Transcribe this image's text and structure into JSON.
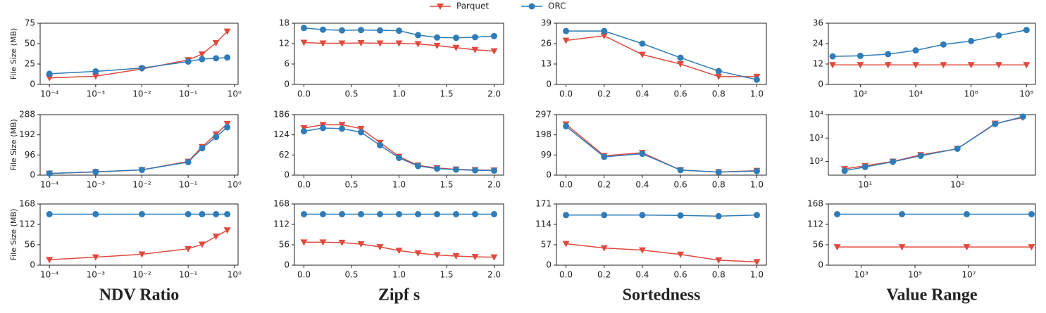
{
  "chart_data": [
    {
      "type": "line",
      "ylabel": "File Size (MB)",
      "xscale": "log",
      "x": [
        0.0001,
        0.001,
        0.01,
        0.1,
        0.2,
        0.4,
        0.7
      ],
      "xlim": [
        6.3e-05,
        1.2
      ],
      "xticks": [
        {
          "value": 0.0001,
          "label": "10⁻⁴"
        },
        {
          "value": 0.001,
          "label": "10⁻³"
        },
        {
          "value": 0.01,
          "label": "10⁻²"
        },
        {
          "value": 0.1,
          "label": "10⁻¹"
        },
        {
          "value": 1,
          "label": "10⁰"
        }
      ],
      "ylim": [
        0,
        75
      ],
      "yticks": [
        0,
        25,
        50,
        75
      ],
      "series": [
        {
          "name": "Parquet",
          "color": "#e0493e",
          "marker": "v",
          "values": [
            8,
            10,
            19,
            30,
            37,
            51,
            65
          ]
        },
        {
          "name": "ORC",
          "color": "#2f7cb8",
          "marker": "o",
          "values": [
            13,
            16,
            20,
            28,
            31,
            32,
            33
          ]
        }
      ]
    },
    {
      "type": "line",
      "x": [
        0,
        0.2,
        0.4,
        0.6,
        0.8,
        1.0,
        1.2,
        1.4,
        1.6,
        1.8,
        2.0
      ],
      "xlim": [
        -0.1,
        2.1
      ],
      "xticks": [
        {
          "value": 0,
          "label": "0.0"
        },
        {
          "value": 0.5,
          "label": "0.5"
        },
        {
          "value": 1,
          "label": "1.0"
        },
        {
          "value": 1.5,
          "label": "1.5"
        },
        {
          "value": 2,
          "label": "2.0"
        }
      ],
      "ylim": [
        0,
        18
      ],
      "yticks": [
        0,
        6,
        12,
        18
      ],
      "series": [
        {
          "name": "Parquet",
          "color": "#e0493e",
          "marker": "v",
          "values": [
            12.3,
            12.1,
            12.1,
            12.2,
            12.1,
            12.1,
            11.9,
            11.4,
            10.8,
            10.2,
            9.8
          ]
        },
        {
          "name": "ORC",
          "color": "#2f7cb8",
          "marker": "o",
          "values": [
            16.6,
            16.1,
            15.9,
            16.0,
            15.9,
            15.8,
            14.5,
            13.8,
            13.7,
            13.9,
            14.2
          ]
        }
      ]
    },
    {
      "type": "line",
      "x": [
        0,
        0.2,
        0.4,
        0.6,
        0.8,
        1.0
      ],
      "xlim": [
        -0.05,
        1.05
      ],
      "xticks": [
        {
          "value": 0,
          "label": "0.0"
        },
        {
          "value": 0.2,
          "label": "0.2"
        },
        {
          "value": 0.4,
          "label": "0.4"
        },
        {
          "value": 0.6,
          "label": "0.6"
        },
        {
          "value": 0.8,
          "label": "0.8"
        },
        {
          "value": 1,
          "label": "1.0"
        }
      ],
      "ylim": [
        0,
        39
      ],
      "yticks": [
        0,
        13,
        26,
        39
      ],
      "series": [
        {
          "name": "Parquet",
          "color": "#e0493e",
          "marker": "v",
          "values": [
            28,
            31,
            19,
            13,
            5,
            5
          ]
        },
        {
          "name": "ORC",
          "color": "#2f7cb8",
          "marker": "o",
          "values": [
            34,
            34,
            26,
            17,
            8.5,
            3
          ]
        }
      ]
    },
    {
      "type": "line",
      "xscale": "log",
      "x": [
        10,
        100,
        1000,
        10000,
        100000,
        1000000,
        10000000,
        100000000
      ],
      "xlim": [
        7,
        210000000
      ],
      "xticks": [
        {
          "value": 100,
          "label": "10²"
        },
        {
          "value": 10000,
          "label": "10⁴"
        },
        {
          "value": 1000000,
          "label": "10⁶"
        },
        {
          "value": 100000000,
          "label": "10⁸"
        }
      ],
      "ylim": [
        0,
        36
      ],
      "yticks": [
        0,
        12,
        24,
        36
      ],
      "series": [
        {
          "name": "Parquet",
          "color": "#e0493e",
          "marker": "v",
          "values": [
            11.5,
            11.5,
            11.5,
            11.5,
            11.5,
            11.5,
            11.5,
            11.5
          ]
        },
        {
          "name": "ORC",
          "color": "#2f7cb8",
          "marker": "o",
          "values": [
            16.5,
            16.8,
            17.8,
            20,
            23.5,
            25.5,
            28.8,
            32
          ]
        }
      ]
    },
    {
      "type": "line",
      "ylabel": "File Size (MB)",
      "xscale": "log",
      "x": [
        0.0001,
        0.001,
        0.01,
        0.1,
        0.2,
        0.4,
        0.7
      ],
      "xlim": [
        6.3e-05,
        1.2
      ],
      "xticks": [
        {
          "value": 0.0001,
          "label": "10⁻⁴"
        },
        {
          "value": 0.001,
          "label": "10⁻³"
        },
        {
          "value": 0.01,
          "label": "10⁻²"
        },
        {
          "value": 0.1,
          "label": "10⁻¹"
        },
        {
          "value": 1,
          "label": "10⁰"
        }
      ],
      "ylim": [
        0,
        288
      ],
      "yticks": [
        0,
        96,
        192,
        288
      ],
      "series": [
        {
          "name": "Parquet",
          "color": "#e0493e",
          "marker": "v",
          "values": [
            8,
            15,
            25,
            65,
            135,
            195,
            245
          ]
        },
        {
          "name": "ORC",
          "color": "#2f7cb8",
          "marker": "o",
          "values": [
            8,
            16,
            25,
            62,
            128,
            182,
            228
          ]
        }
      ]
    },
    {
      "type": "line",
      "x": [
        0,
        0.2,
        0.4,
        0.6,
        0.8,
        1.0,
        1.2,
        1.4,
        1.6,
        1.8,
        2.0
      ],
      "xlim": [
        -0.1,
        2.1
      ],
      "xticks": [
        {
          "value": 0,
          "label": "0.0"
        },
        {
          "value": 0.5,
          "label": "0.5"
        },
        {
          "value": 1,
          "label": "1.0"
        },
        {
          "value": 1.5,
          "label": "1.5"
        },
        {
          "value": 2,
          "label": "2.0"
        }
      ],
      "ylim": [
        0,
        186
      ],
      "yticks": [
        0,
        62,
        124,
        186
      ],
      "series": [
        {
          "name": "Parquet",
          "color": "#e0493e",
          "marker": "v",
          "values": [
            145,
            155,
            155,
            143,
            100,
            57,
            30,
            22,
            18,
            16,
            15
          ]
        },
        {
          "name": "ORC",
          "color": "#2f7cb8",
          "marker": "o",
          "values": [
            135,
            145,
            143,
            132,
            92,
            53,
            28,
            20,
            17,
            15,
            14
          ]
        }
      ]
    },
    {
      "type": "line",
      "x": [
        0,
        0.2,
        0.4,
        0.6,
        0.8,
        1.0
      ],
      "xlim": [
        -0.05,
        1.05
      ],
      "xticks": [
        {
          "value": 0,
          "label": "0.0"
        },
        {
          "value": 0.2,
          "label": "0.2"
        },
        {
          "value": 0.4,
          "label": "0.4"
        },
        {
          "value": 0.6,
          "label": "0.6"
        },
        {
          "value": 0.8,
          "label": "0.8"
        },
        {
          "value": 1,
          "label": "1.0"
        }
      ],
      "ylim": [
        0,
        297
      ],
      "yticks": [
        0,
        99,
        198,
        297
      ],
      "series": [
        {
          "name": "Parquet",
          "color": "#e0493e",
          "marker": "v",
          "values": [
            250,
            95,
            110,
            25,
            15,
            22
          ]
        },
        {
          "name": "ORC",
          "color": "#2f7cb8",
          "marker": "o",
          "values": [
            240,
            90,
            105,
            25,
            15,
            20
          ]
        }
      ]
    },
    {
      "type": "line",
      "xscale": "log",
      "yscale": "log",
      "x": [
        6,
        10,
        20,
        40,
        100,
        256,
        512
      ],
      "xlim": [
        4,
        700
      ],
      "xticks": [
        {
          "value": 10,
          "label": "10¹"
        },
        {
          "value": 100,
          "label": "10²"
        }
      ],
      "ylim": [
        26,
        10000
      ],
      "yticks": [
        {
          "value": 100,
          "label": "10²"
        },
        {
          "value": 1000,
          "label": "10³"
        },
        {
          "value": 10000,
          "label": "10⁴"
        }
      ],
      "series": [
        {
          "name": "Parquet",
          "color": "#e0493e",
          "marker": "v",
          "values": [
            48,
            65,
            100,
            190,
            350,
            4200,
            7500
          ]
        },
        {
          "name": "ORC",
          "color": "#2f7cb8",
          "marker": "o",
          "values": [
            40,
            58,
            97,
            175,
            350,
            4000,
            8200
          ]
        }
      ]
    },
    {
      "type": "line",
      "ylabel": "File Size (MB)",
      "xlabel": "NDV Ratio",
      "xscale": "log",
      "x": [
        0.0001,
        0.001,
        0.01,
        0.1,
        0.2,
        0.4,
        0.7
      ],
      "xlim": [
        6.3e-05,
        1.2
      ],
      "xticks": [
        {
          "value": 0.0001,
          "label": "10⁻⁴"
        },
        {
          "value": 0.001,
          "label": "10⁻³"
        },
        {
          "value": 0.01,
          "label": "10⁻²"
        },
        {
          "value": 0.1,
          "label": "10⁻¹"
        },
        {
          "value": 1,
          "label": "10⁰"
        }
      ],
      "ylim": [
        0,
        168
      ],
      "yticks": [
        0,
        56,
        112,
        168
      ],
      "series": [
        {
          "name": "Parquet",
          "color": "#e0493e",
          "marker": "v",
          "values": [
            15,
            22,
            30,
            45,
            57,
            79,
            96
          ]
        },
        {
          "name": "ORC",
          "color": "#2f7cb8",
          "marker": "o",
          "values": [
            140,
            140,
            140,
            140,
            140,
            140,
            140
          ]
        }
      ]
    },
    {
      "type": "line",
      "xlabel": "Zipf s",
      "x": [
        0,
        0.2,
        0.4,
        0.6,
        0.8,
        1.0,
        1.2,
        1.4,
        1.6,
        1.8,
        2.0
      ],
      "xlim": [
        -0.1,
        2.1
      ],
      "xticks": [
        {
          "value": 0,
          "label": "0.0"
        },
        {
          "value": 0.5,
          "label": "0.5"
        },
        {
          "value": 1,
          "label": "1.0"
        },
        {
          "value": 1.5,
          "label": "1.5"
        },
        {
          "value": 2,
          "label": "2.0"
        }
      ],
      "ylim": [
        0,
        168
      ],
      "yticks": [
        0,
        56,
        112,
        168
      ],
      "series": [
        {
          "name": "Parquet",
          "color": "#e0493e",
          "marker": "v",
          "values": [
            63,
            63,
            62,
            58,
            50,
            40,
            33,
            28,
            25,
            23,
            22
          ]
        },
        {
          "name": "ORC",
          "color": "#2f7cb8",
          "marker": "o",
          "values": [
            140,
            140,
            140,
            140,
            140,
            140,
            140,
            140,
            140,
            140,
            140
          ]
        }
      ]
    },
    {
      "type": "line",
      "xlabel": "Sortedness",
      "x": [
        0,
        0.2,
        0.4,
        0.6,
        0.8,
        1.0
      ],
      "xlim": [
        -0.05,
        1.05
      ],
      "xticks": [
        {
          "value": 0,
          "label": "0.0"
        },
        {
          "value": 0.2,
          "label": "0.2"
        },
        {
          "value": 0.4,
          "label": "0.4"
        },
        {
          "value": 0.6,
          "label": "0.6"
        },
        {
          "value": 0.8,
          "label": "0.8"
        },
        {
          "value": 1,
          "label": "1.0"
        }
      ],
      "ylim": [
        0,
        171
      ],
      "yticks": [
        0,
        57,
        114,
        171
      ],
      "series": [
        {
          "name": "Parquet",
          "color": "#e0493e",
          "marker": "v",
          "values": [
            60,
            48,
            42,
            30,
            14,
            9
          ]
        },
        {
          "name": "ORC",
          "color": "#2f7cb8",
          "marker": "o",
          "values": [
            140,
            140,
            140,
            139,
            137,
            140
          ]
        }
      ]
    },
    {
      "type": "line",
      "xlabel": "Value Range",
      "xscale": "log",
      "x": [
        128,
        32768,
        8388608,
        2147483648
      ],
      "xlim": [
        60,
        3000000000
      ],
      "xticks": [
        {
          "value": 1000,
          "label": "10³"
        },
        {
          "value": 100000,
          "label": "10⁵"
        },
        {
          "value": 10000000,
          "label": "10⁷"
        }
      ],
      "ylim": [
        0,
        168
      ],
      "yticks": [
        0,
        56,
        112,
        168
      ],
      "series": [
        {
          "name": "Parquet",
          "color": "#e0493e",
          "marker": "v",
          "values": [
            50,
            50,
            50,
            50
          ]
        },
        {
          "name": "ORC",
          "color": "#2f7cb8",
          "marker": "o",
          "values": [
            140,
            140,
            140,
            140
          ]
        }
      ]
    }
  ]
}
